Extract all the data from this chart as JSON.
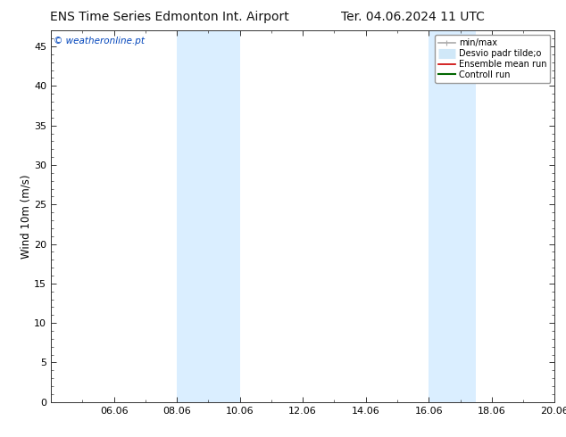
{
  "title_left": "ENS Time Series Edmonton Int. Airport",
  "title_right": "Ter. 04.06.2024 11 UTC",
  "ylabel": "Wind 10m (m/s)",
  "watermark": "© weatheronline.pt",
  "xtick_labels": [
    "06.06",
    "08.06",
    "10.06",
    "12.06",
    "14.06",
    "16.06",
    "18.06",
    "20.06"
  ],
  "xtick_positions": [
    2,
    4,
    6,
    8,
    10,
    12,
    14,
    16
  ],
  "ylim": [
    0,
    47
  ],
  "ytick_positions": [
    0,
    5,
    10,
    15,
    20,
    25,
    30,
    35,
    40,
    45
  ],
  "ytick_labels": [
    "0",
    "5",
    "10",
    "15",
    "20",
    "25",
    "30",
    "35",
    "40",
    "45"
  ],
  "shaded_bands": [
    {
      "x_start": 4,
      "x_end": 6
    },
    {
      "x_start": 12,
      "x_end": 13.5
    }
  ],
  "band_color": "#daeeff",
  "bg_color": "#ffffff",
  "xlim": [
    0,
    16
  ],
  "legend_entries": [
    {
      "label": "min/max",
      "color": "#aaaaaa",
      "lw": 1.2
    },
    {
      "label": "Desvio padr tilde;o",
      "color": "#ccddee",
      "lw": 6
    },
    {
      "label": "Ensemble mean run",
      "color": "#cc0000",
      "lw": 1.2
    },
    {
      "label": "Controll run",
      "color": "#006600",
      "lw": 1.5
    }
  ],
  "title_fontsize": 10,
  "axis_fontsize": 8.5,
  "tick_fontsize": 8,
  "watermark_color": "#0044bb",
  "spine_color": "#333333"
}
